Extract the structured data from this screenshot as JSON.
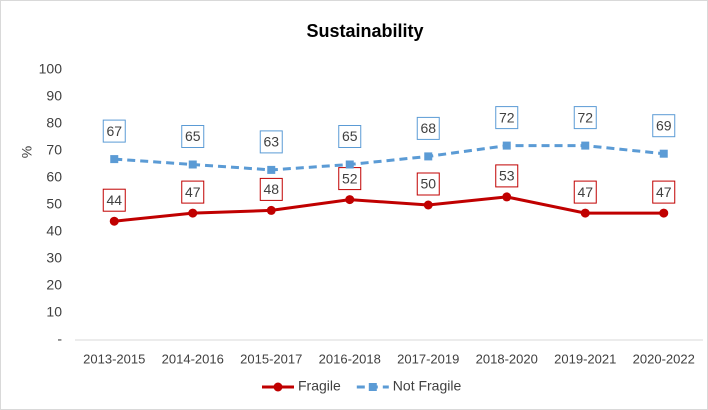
{
  "chart_data": {
    "type": "line",
    "title": "Sustainability",
    "y_label": "%",
    "categories": [
      "2013-2015",
      "2014-2016",
      "2015-2017",
      "2016-2018",
      "2017-2019",
      "2018-2020",
      "2019-2021",
      "2020-2022"
    ],
    "series": [
      {
        "name": "Fragile",
        "color": "#c00000",
        "marker": "circle",
        "dashed": false,
        "values": [
          44,
          47,
          48,
          52,
          50,
          53,
          47,
          47
        ]
      },
      {
        "name": "Not Fragile",
        "color": "#5b9bd5",
        "marker": "square",
        "dashed": true,
        "values": [
          67,
          65,
          63,
          65,
          68,
          72,
          72,
          69
        ]
      }
    ],
    "ylim": [
      0,
      100
    ],
    "yticks": [
      {
        "value": 0,
        "label": "-"
      },
      10,
      20,
      30,
      40,
      50,
      60,
      70,
      80,
      90,
      100
    ],
    "grid": false,
    "legend": "bottom",
    "data_labels": true
  }
}
